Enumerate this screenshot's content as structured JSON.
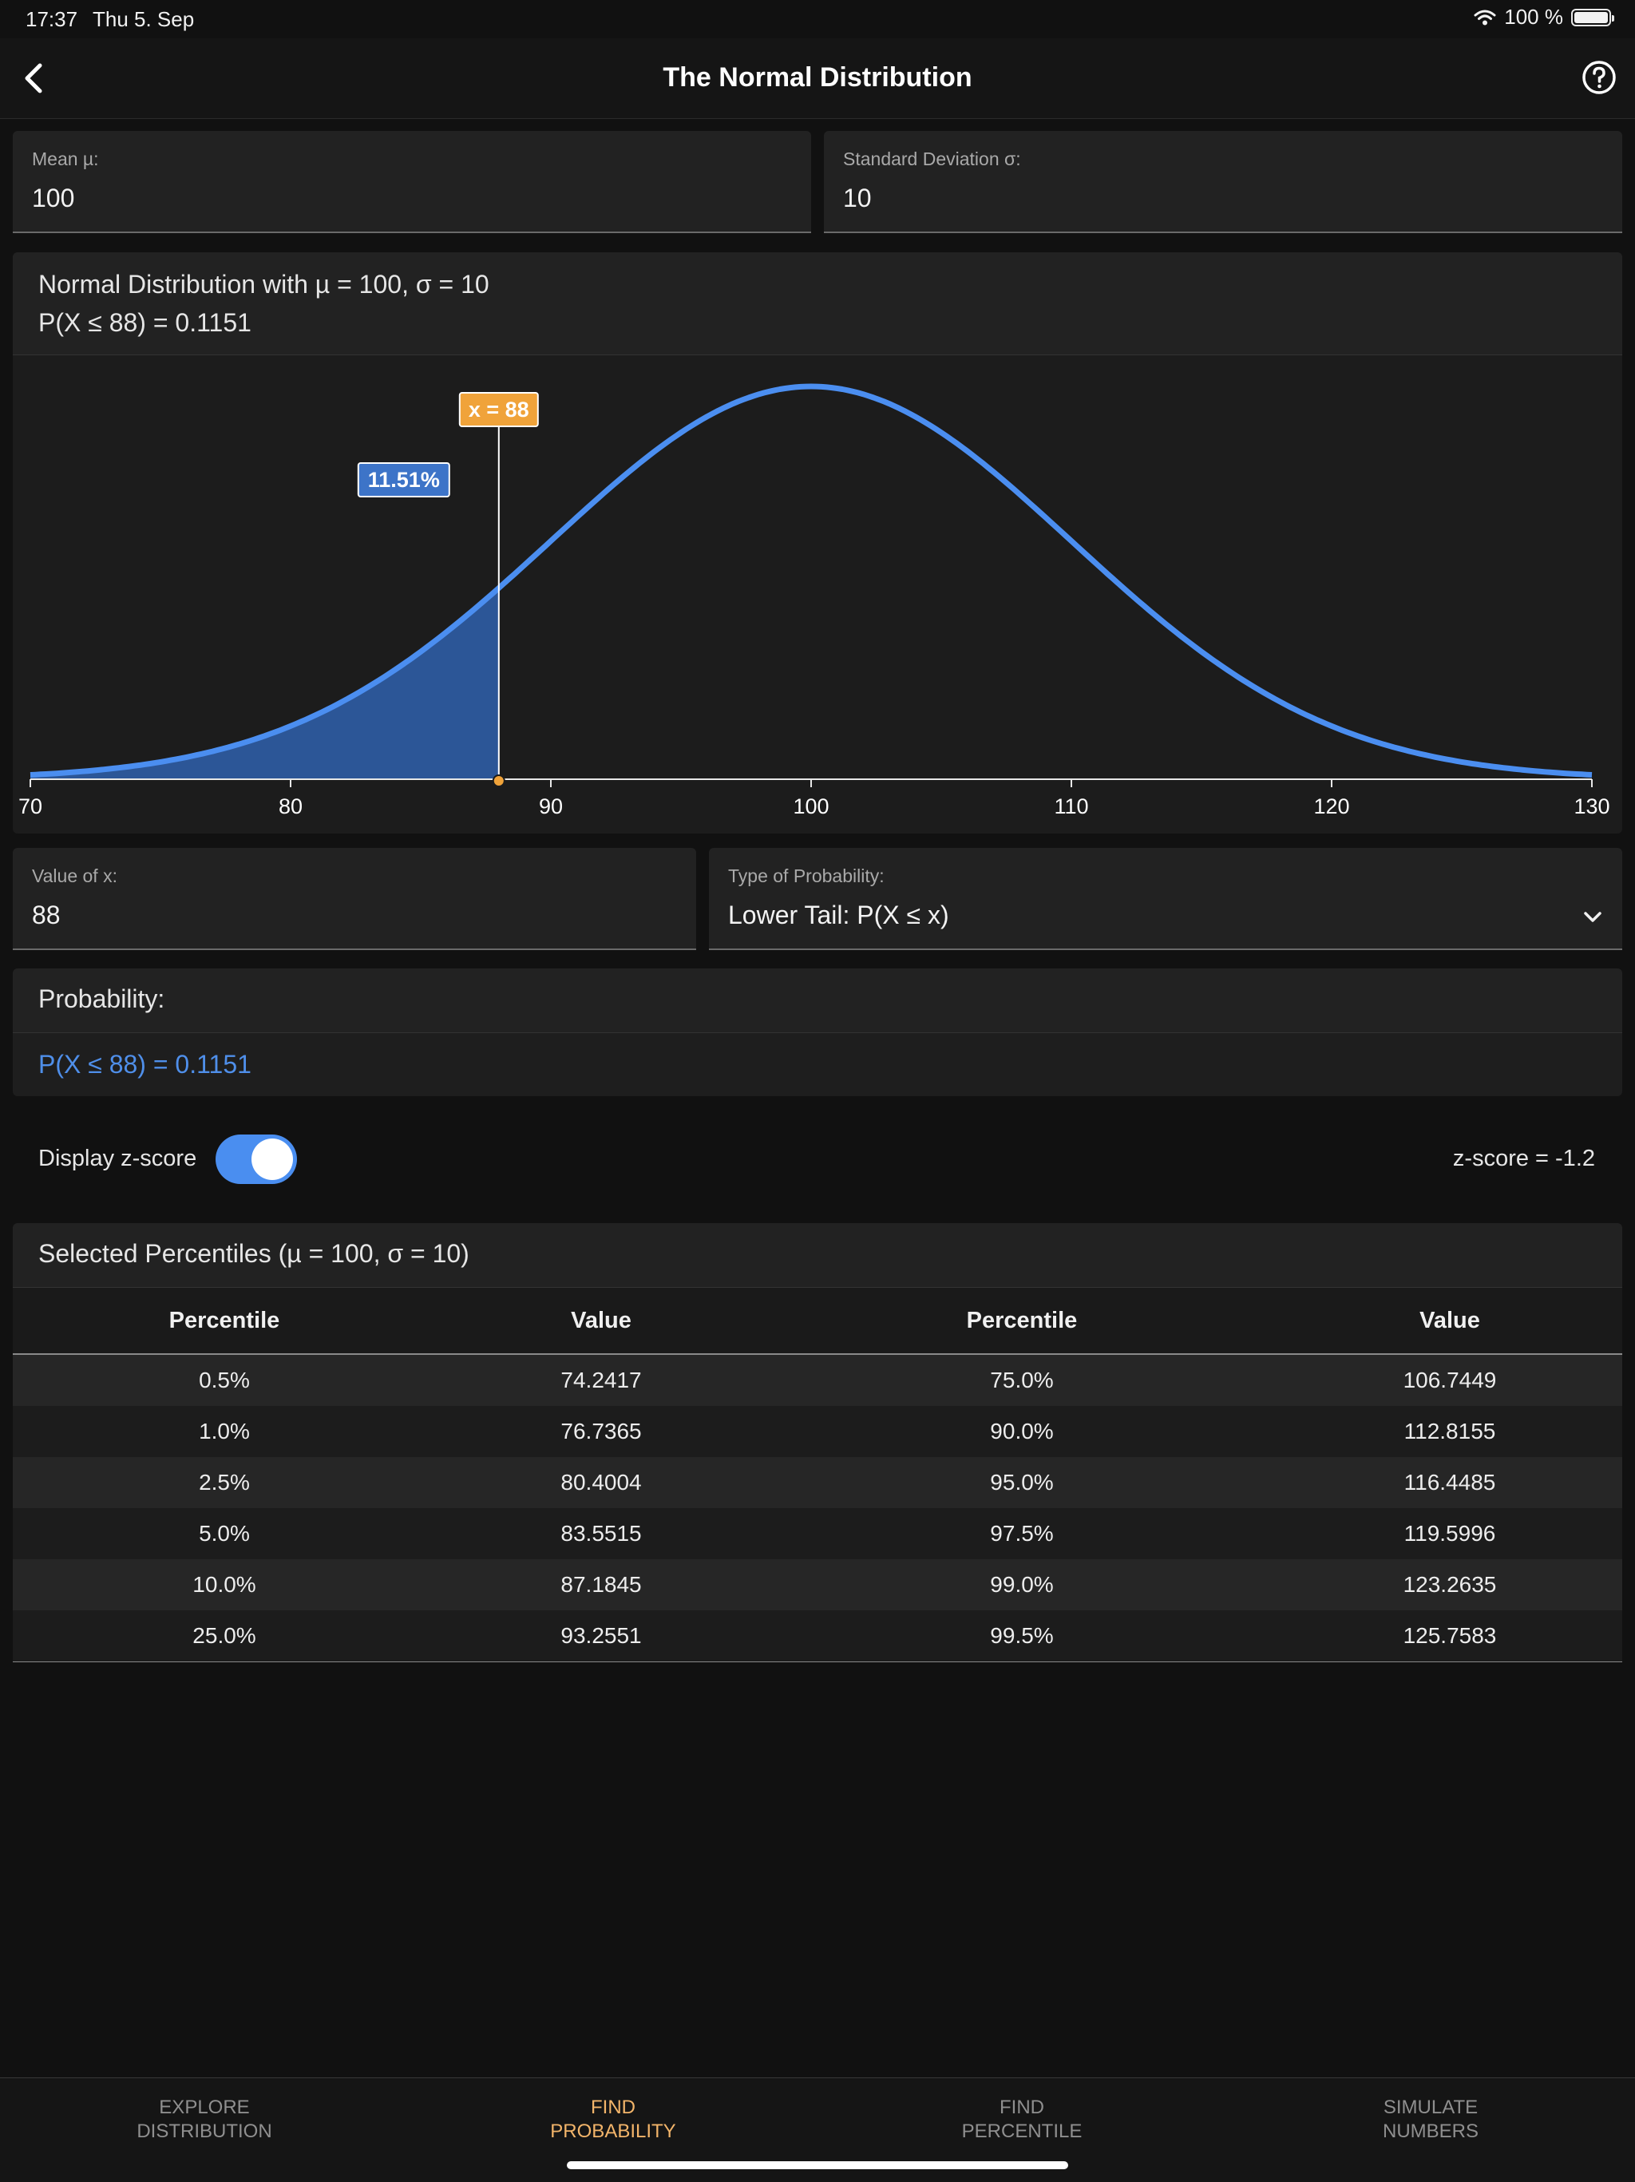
{
  "status": {
    "time": "17:37",
    "date": "Thu 5. Sep",
    "battery": "100 %"
  },
  "nav": {
    "title": "The Normal Distribution"
  },
  "inputs": {
    "mean": {
      "label": "Mean µ:",
      "value": "100"
    },
    "sd": {
      "label": "Standard Deviation σ:",
      "value": "10"
    },
    "x": {
      "label": "Value of x:",
      "value": "88"
    },
    "type": {
      "label": "Type of Probability:",
      "value": "Lower Tail: P(X ≤ x)"
    }
  },
  "chart_header": {
    "title": "Normal Distribution with µ = 100, σ = 10",
    "subtitle": "P(X ≤ 88) = 0.1151"
  },
  "chart_data": {
    "type": "area",
    "distribution": "normal",
    "mean": 100,
    "sd": 10,
    "xlim": [
      70,
      130
    ],
    "x_ticks": [
      "70",
      "80",
      "90",
      "100",
      "110",
      "120",
      "130"
    ],
    "marker_x": 88,
    "marker_label": "x = 88",
    "shaded_region": "lower tail, x ≤ 88",
    "area_label": "11.51%",
    "colors": {
      "curve": "#4b8ef0",
      "shade": "#2f5ea8",
      "marker_label": "#f0a33a",
      "area_label": "#3d74c8"
    }
  },
  "probability": {
    "title": "Probability:",
    "result": "P(X ≤ 88) = 0.1151"
  },
  "zscore": {
    "label": "Display z-score",
    "enabled": true,
    "value": "z-score = -1.2"
  },
  "percentiles": {
    "title": "Selected Percentiles (µ = 100, σ = 10)",
    "headers": [
      "Percentile",
      "Value",
      "Percentile",
      "Value"
    ],
    "rows": [
      [
        "0.5%",
        "74.2417",
        "75.0%",
        "106.7449"
      ],
      [
        "1.0%",
        "76.7365",
        "90.0%",
        "112.8155"
      ],
      [
        "2.5%",
        "80.4004",
        "95.0%",
        "116.4485"
      ],
      [
        "5.0%",
        "83.5515",
        "97.5%",
        "119.5996"
      ],
      [
        "10.0%",
        "87.1845",
        "99.0%",
        "123.2635"
      ],
      [
        "25.0%",
        "93.2551",
        "99.5%",
        "125.7583"
      ]
    ]
  },
  "tabs": [
    {
      "label": "EXPLORE\nDISTRIBUTION",
      "active": false
    },
    {
      "label": "FIND\nPROBABILITY",
      "active": true
    },
    {
      "label": "FIND\nPERCENTILE",
      "active": false
    },
    {
      "label": "SIMULATE\nNUMBERS",
      "active": false
    }
  ]
}
